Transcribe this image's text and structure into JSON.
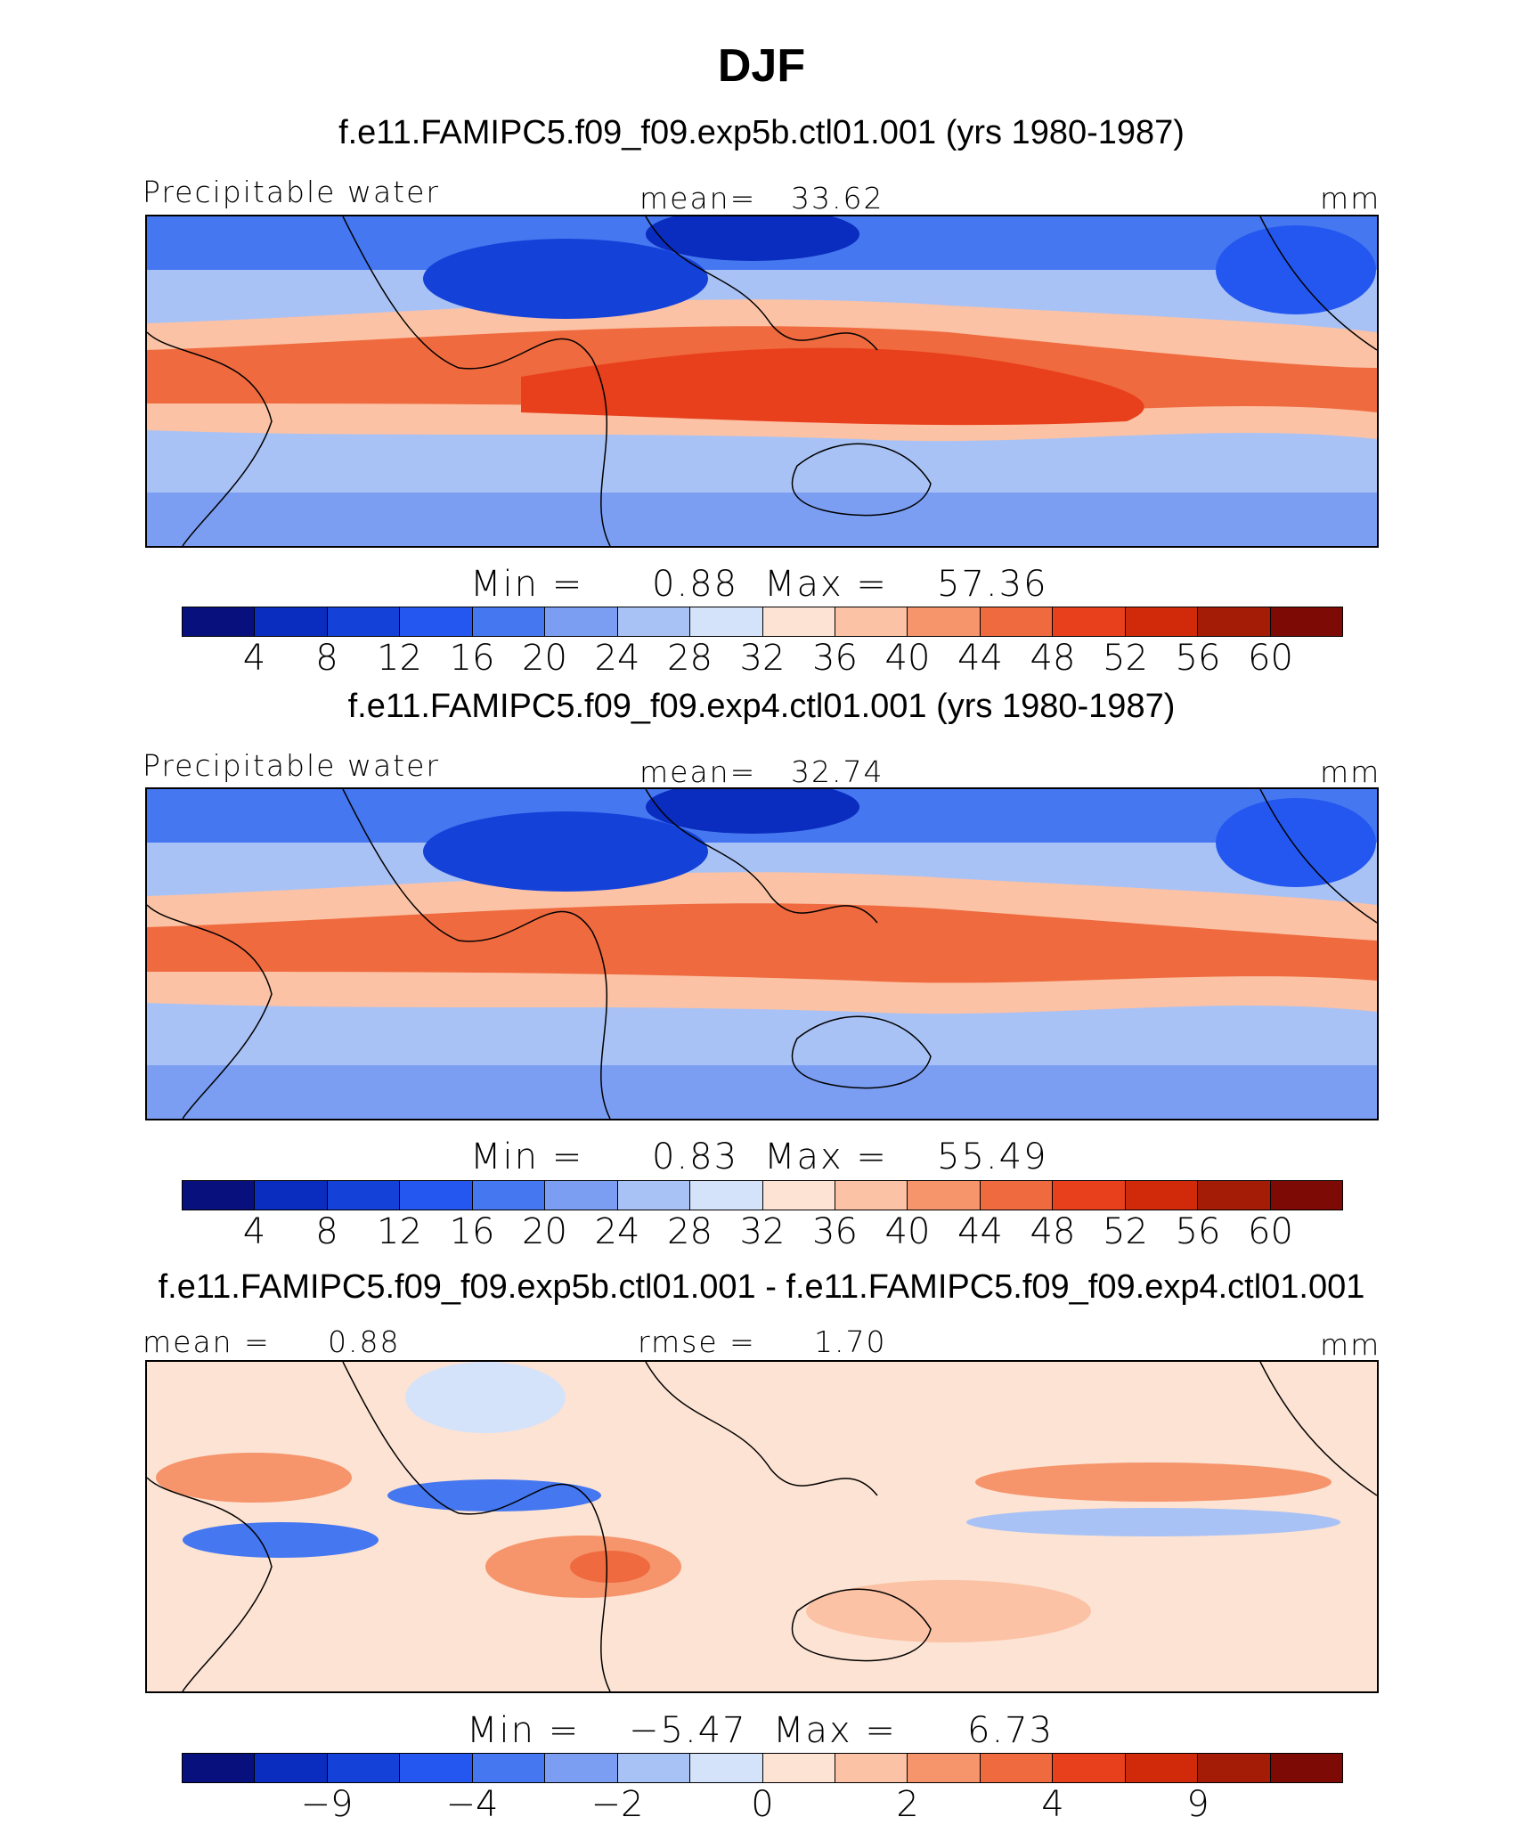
{
  "title": "DJF",
  "chart_data": [
    {
      "type": "heatmap",
      "title": "f.e11.FAMIPC5.f09_f09.exp5b.ctl01.001 (yrs 1980-1987)",
      "variable": "Precipitable water",
      "units": "mm",
      "mean_label": "mean=",
      "mean": "33.62",
      "min_label": "Min =",
      "min": "0.88",
      "max_label": "Max =",
      "max": "57.36",
      "colorbar_ticks": [
        "4",
        "8",
        "12",
        "16",
        "20",
        "24",
        "28",
        "32",
        "36",
        "40",
        "44",
        "48",
        "52",
        "56",
        "60"
      ]
    },
    {
      "type": "heatmap",
      "title": "f.e11.FAMIPC5.f09_f09.exp4.ctl01.001 (yrs 1980-1987)",
      "variable": "Precipitable water",
      "units": "mm",
      "mean_label": "mean=",
      "mean": "32.74",
      "min_label": "Min =",
      "min": "0.83",
      "max_label": "Max =",
      "max": "55.49",
      "colorbar_ticks": [
        "4",
        "8",
        "12",
        "16",
        "20",
        "24",
        "28",
        "32",
        "36",
        "40",
        "44",
        "48",
        "52",
        "56",
        "60"
      ]
    },
    {
      "type": "heatmap",
      "title": "f.e11.FAMIPC5.f09_f09.exp5b.ctl01.001 - f.e11.FAMIPC5.f09_f09.exp4.ctl01.001",
      "units": "mm",
      "mean_label": "mean =",
      "mean": "0.88",
      "rmse_label": "rmse =",
      "rmse": "1.70",
      "min_label": "Min =",
      "min": "−5.47",
      "max_label": "Max =",
      "max": "6.73",
      "colorbar_ticks": [
        "−9",
        "−4",
        "−2",
        "0",
        "2",
        "4",
        "9"
      ]
    }
  ],
  "colors": {
    "abs_palette": [
      "#08107d",
      "#0a2dbf",
      "#1442d9",
      "#2457f0",
      "#4577f0",
      "#7b9ef2",
      "#a9c2f5",
      "#d4e3fa",
      "#fde3d3",
      "#fbc2a5",
      "#f6946b",
      "#ef6a3e",
      "#e8401c",
      "#d02a0a",
      "#a51c06",
      "#7d0a04"
    ],
    "diff_palette": [
      "#08107d",
      "#0a2dbf",
      "#1442d9",
      "#2457f0",
      "#4577f0",
      "#7b9ef2",
      "#a9c2f5",
      "#d4e3fa",
      "#fde3d3",
      "#fbc2a5",
      "#f6946b",
      "#ef6a3e",
      "#e8401c",
      "#d02a0a",
      "#a51c06",
      "#7d0a04"
    ]
  }
}
